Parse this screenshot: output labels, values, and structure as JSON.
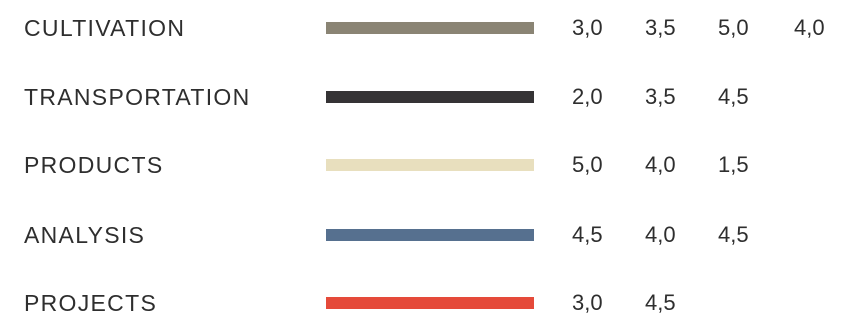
{
  "legend": {
    "items": [
      {
        "label": "CULTIVATION",
        "color": "#8a8474",
        "values": [
          "3,0",
          "3,5",
          "5,0",
          "4,0"
        ]
      },
      {
        "label": "TRANSPORTATION",
        "color": "#353335",
        "values": [
          "2,0",
          "3,5",
          "4,5"
        ]
      },
      {
        "label": "PRODUCTS",
        "color": "#e8dfbe",
        "values": [
          "5,0",
          "4,0",
          "1,5"
        ]
      },
      {
        "label": "ANALYSIS",
        "color": "#56708f",
        "values": [
          "4,5",
          "4,0",
          "4,5"
        ]
      },
      {
        "label": "PROJECTS",
        "color": "#e54a3a",
        "values": [
          "3,0",
          "4,5"
        ]
      }
    ]
  }
}
